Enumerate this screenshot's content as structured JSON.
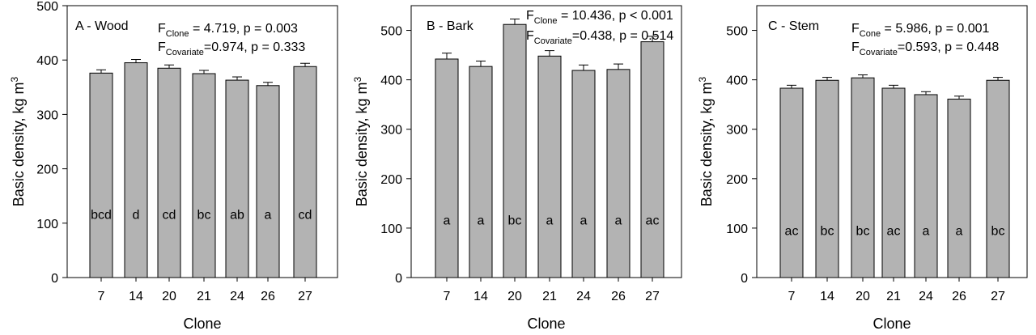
{
  "chart_data": [
    {
      "type": "bar",
      "panel_label": "A - Wood",
      "xlabel": "Clone",
      "ylabel": "Basic density, kg m",
      "ylabel_sup": "3",
      "ylim": [
        0,
        500
      ],
      "yticks": [
        0,
        100,
        200,
        300,
        400,
        500
      ],
      "categories": [
        "7",
        "14",
        "20",
        "21",
        "24",
        "26",
        "27"
      ],
      "values": [
        376,
        395,
        385,
        375,
        363,
        353,
        388
      ],
      "errors": [
        6,
        6,
        6,
        6,
        6,
        6,
        6
      ],
      "letters": [
        "bcd",
        "d",
        "cd",
        "bc",
        "ab",
        "a",
        "cd"
      ],
      "letter_y": 117,
      "stats": [
        {
          "prefix": "F",
          "sub": "Clone",
          "suffix": " = 4.719, p = 0.003"
        },
        {
          "prefix": "F",
          "sub": "Covariate",
          "suffix": "=0.974, p = 0.333"
        }
      ]
    },
    {
      "type": "bar",
      "panel_label": "B - Bark",
      "xlabel": "Clone",
      "ylabel": "Basic density, kg m",
      "ylabel_sup": "3",
      "ylim": [
        0,
        550
      ],
      "yticks": [
        0,
        100,
        200,
        300,
        400,
        500
      ],
      "categories": [
        "7",
        "14",
        "20",
        "21",
        "24",
        "26",
        "27"
      ],
      "values": [
        442,
        427,
        512,
        448,
        419,
        421,
        477
      ],
      "errors": [
        12,
        11,
        11,
        11,
        11,
        11,
        11
      ],
      "letters": [
        "a",
        "a",
        "bc",
        "a",
        "a",
        "a",
        "ac"
      ],
      "letter_y": 117,
      "stats": [
        {
          "prefix": "F",
          "sub": "Clone",
          "suffix": " = 10.436, p < 0.001"
        },
        {
          "prefix": "F",
          "sub": "Covariate",
          "suffix": "=0.438, p = 0.514"
        }
      ]
    },
    {
      "type": "bar",
      "panel_label": "C - Stem",
      "xlabel": "Clone",
      "ylabel": "Basic density, kg m",
      "ylabel_sup": "3",
      "ylim": [
        0,
        550
      ],
      "yticks": [
        0,
        100,
        200,
        300,
        400,
        500
      ],
      "categories": [
        "7",
        "14",
        "20",
        "21",
        "24",
        "26",
        "27"
      ],
      "values": [
        383,
        399,
        404,
        383,
        370,
        361,
        399
      ],
      "errors": [
        6,
        6,
        6,
        6,
        6,
        6,
        6
      ],
      "letters": [
        "ac",
        "bc",
        "bc",
        "ac",
        "a",
        "a",
        "bc"
      ],
      "letter_y": 96,
      "stats": [
        {
          "prefix": "F",
          "sub": "Cone",
          "suffix": " = 5.986, p = 0.001"
        },
        {
          "prefix": "F",
          "sub": "Covariate",
          "suffix": "=0.593, p = 0.448"
        }
      ]
    }
  ],
  "colors": {
    "bar_fill": "#b3b3b3",
    "axis": "#000000",
    "background": "#ffffff"
  }
}
